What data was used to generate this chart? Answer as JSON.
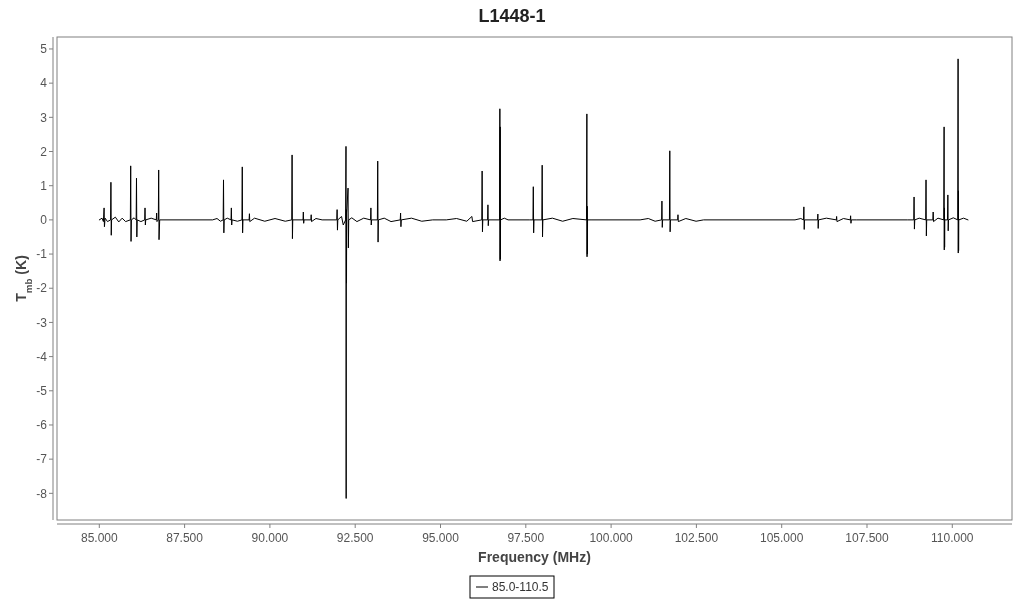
{
  "chart_data": {
    "type": "line",
    "title": "L1448-1",
    "xlabel": "Frequency (MHz)",
    "ylabel": "T$_{mb}$ (K)",
    "xlim": [
      83.76,
      111.75
    ],
    "ylim": [
      -8.78,
      5.35
    ],
    "xticks": [
      {
        "value": 85,
        "label": "85.000"
      },
      {
        "value": 87.5,
        "label": "87.500"
      },
      {
        "value": 90,
        "label": "90.000"
      },
      {
        "value": 92.5,
        "label": "92.500"
      },
      {
        "value": 95,
        "label": "95.000"
      },
      {
        "value": 97.5,
        "label": "97.500"
      },
      {
        "value": 100,
        "label": "100.000"
      },
      {
        "value": 102.5,
        "label": "102.500"
      },
      {
        "value": 105,
        "label": "105.000"
      },
      {
        "value": 107.5,
        "label": "107.500"
      },
      {
        "value": 110,
        "label": "110.000"
      }
    ],
    "yticks": [
      5,
      4,
      3,
      2,
      1,
      0,
      -1,
      -2,
      -3,
      -4,
      -5,
      -6,
      -7,
      -8
    ],
    "legend": "bottom",
    "series": [
      {
        "name": "85.0-110.5",
        "color": "#000000",
        "x": [
          85.0,
          85.08,
          85.12,
          85.14,
          85.15,
          85.17,
          85.24,
          85.33,
          85.34,
          85.35,
          85.36,
          85.47,
          85.57,
          85.67,
          85.77,
          85.91,
          85.92,
          85.93,
          85.94,
          86.02,
          86.08,
          86.09,
          86.1,
          86.11,
          86.22,
          86.33,
          86.34,
          86.35,
          86.36,
          86.52,
          86.67,
          86.68,
          86.69,
          86.73,
          86.74,
          86.75,
          86.77,
          88.32,
          88.45,
          88.55,
          88.63,
          88.64,
          88.65,
          88.66,
          88.75,
          88.86,
          88.87,
          88.88,
          88.89,
          89.05,
          89.18,
          89.19,
          89.2,
          89.21,
          89.39,
          89.4,
          89.41,
          89.55,
          89.85,
          90.15,
          90.45,
          90.64,
          90.65,
          90.66,
          90.67,
          90.97,
          90.98,
          90.99,
          91.0,
          91.2,
          91.21,
          91.22,
          91.35,
          91.53,
          91.85,
          91.96,
          91.97,
          91.98,
          91.99,
          92.1,
          92.15,
          92.22,
          92.23,
          92.235,
          92.24,
          92.245,
          92.25,
          92.29,
          92.3,
          92.31,
          92.4,
          92.55,
          92.75,
          92.95,
          92.96,
          92.97,
          92.98,
          93.15,
          93.16,
          93.17,
          93.18,
          93.35,
          93.55,
          93.82,
          93.83,
          93.84,
          93.85,
          94.15,
          94.45,
          94.77,
          95.17,
          95.47,
          95.77,
          95.92,
          95.94,
          96.21,
          96.22,
          96.23,
          96.24,
          96.38,
          96.39,
          96.4,
          96.41,
          96.73,
          96.74,
          96.745,
          96.75,
          96.755,
          96.76,
          96.87,
          96.98,
          97.6,
          97.71,
          97.72,
          97.73,
          97.74,
          97.97,
          97.98,
          97.99,
          98.0,
          98.28,
          98.58,
          98.88,
          99.28,
          99.29,
          99.295,
          99.3,
          99.305,
          99.31,
          99.44,
          100.85,
          101.09,
          101.29,
          101.48,
          101.49,
          101.5,
          101.51,
          101.71,
          101.72,
          101.73,
          101.74,
          101.95,
          101.96,
          101.97,
          102.19,
          102.49,
          102.71,
          105.39,
          105.56,
          105.64,
          105.65,
          105.66,
          105.67,
          106.05,
          106.06,
          106.07,
          106.08,
          106.31,
          106.6,
          106.61,
          106.62,
          106.81,
          107.01,
          107.02,
          107.03,
          107.04,
          107.2,
          108.68,
          108.87,
          108.88,
          108.89,
          108.9,
          109.03,
          109.22,
          109.23,
          109.24,
          109.25,
          109.43,
          109.44,
          109.45,
          109.58,
          109.75,
          109.76,
          109.765,
          109.77,
          109.775,
          109.78,
          109.86,
          109.87,
          109.88,
          109.89,
          110.03,
          110.16,
          110.17,
          110.175,
          110.18,
          110.185,
          110.19,
          110.33,
          110.46
        ],
        "values": [
          0,
          0.05,
          -0.05,
          0.35,
          -0.2,
          0.05,
          -0.05,
          0,
          1.1,
          -0.45,
          0,
          0.08,
          -0.06,
          0.05,
          -0.05,
          0,
          1.58,
          -0.63,
          0,
          0.06,
          0,
          1.22,
          -0.5,
          0,
          -0.05,
          0,
          0.35,
          -0.15,
          0,
          0.05,
          0,
          0.2,
          -0.05,
          0,
          1.46,
          -0.58,
          0,
          0,
          0.04,
          -0.04,
          0,
          1.17,
          -0.38,
          0,
          0.05,
          0,
          0.35,
          -0.15,
          0,
          -0.04,
          0,
          1.55,
          -0.38,
          0,
          0,
          0.18,
          -0.05,
          0.05,
          -0.04,
          0.04,
          -0.04,
          0,
          1.9,
          -0.55,
          0,
          0,
          0.23,
          -0.1,
          0,
          0,
          0.15,
          -0.05,
          0.04,
          0,
          0,
          0,
          0.3,
          -0.3,
          0,
          0.1,
          -0.15,
          0,
          2.15,
          -8.15,
          0.3,
          -1.85,
          0.2,
          0.93,
          -0.82,
          0,
          0.06,
          -0.05,
          0.05,
          0,
          0.35,
          -0.15,
          0,
          0,
          1.72,
          -0.65,
          0,
          0.05,
          -0.05,
          0,
          0.2,
          -0.2,
          0,
          0.05,
          -0.04,
          0,
          0,
          0.04,
          -0.04,
          0.1,
          -0.05,
          0,
          1.43,
          -0.35,
          0,
          0,
          0.44,
          -0.17,
          0,
          0,
          3.25,
          -1.2,
          2.72,
          -1.15,
          0,
          0.05,
          0,
          0,
          0,
          0.97,
          -0.38,
          0,
          0,
          1.6,
          -0.5,
          0,
          0.05,
          -0.04,
          0.04,
          0,
          3.1,
          -1.08,
          0.4,
          -1.0,
          0,
          0,
          0,
          0.04,
          -0.04,
          0,
          0.55,
          -0.22,
          0,
          0,
          2.02,
          -0.35,
          0,
          0,
          0.15,
          -0.05,
          0.04,
          -0.04,
          0,
          0,
          0.04,
          0,
          0.38,
          -0.28,
          0,
          0,
          0.17,
          -0.25,
          0,
          0.05,
          0,
          0.1,
          -0.05,
          0.04,
          0,
          0.12,
          -0.1,
          0,
          0,
          0,
          0,
          0.67,
          -0.27,
          0,
          0.05,
          0,
          1.17,
          -0.47,
          0,
          0,
          0.23,
          -0.05,
          0.05,
          0,
          2.72,
          -0.88,
          0.35,
          -0.8,
          0,
          0,
          0.73,
          -0.32,
          0,
          0.06,
          0,
          4.71,
          -0.97,
          0.85,
          -0.9,
          0,
          0.05,
          0
        ]
      }
    ]
  }
}
